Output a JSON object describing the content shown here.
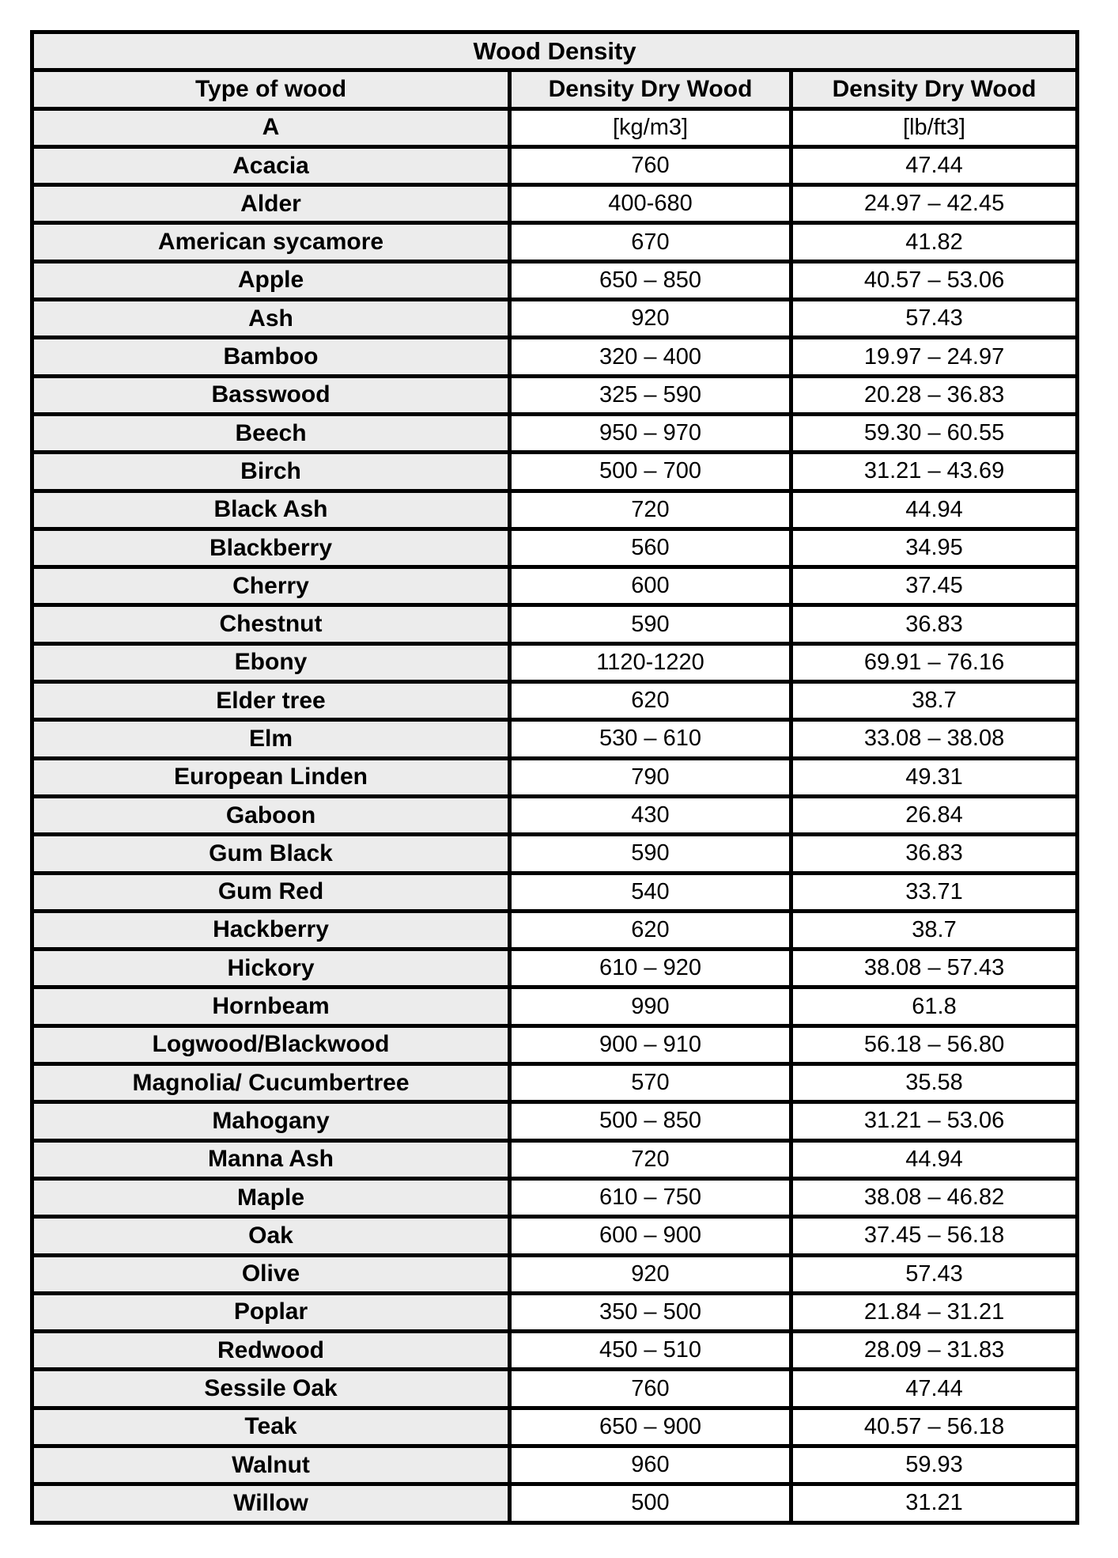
{
  "table": {
    "title": "Wood Density",
    "columns": [
      "Type of wood",
      "Density Dry Wood",
      "Density Dry Wood"
    ],
    "units_row": {
      "label": "A",
      "kg_unit": "[kg/m3]",
      "lb_unit": "[lb/ft3]"
    },
    "colors": {
      "shaded_bg": "#ececec",
      "value_bg": "#ffffff",
      "border": "#000000"
    },
    "rows": [
      {
        "name": "Acacia",
        "kg_m3": "760",
        "lb_ft3": "47.44"
      },
      {
        "name": "Alder",
        "kg_m3": "400-680",
        "lb_ft3": "24.97 – 42.45"
      },
      {
        "name": "American sycamore",
        "kg_m3": "670",
        "lb_ft3": "41.82"
      },
      {
        "name": "Apple",
        "kg_m3": "650 – 850",
        "lb_ft3": "40.57 – 53.06"
      },
      {
        "name": "Ash",
        "kg_m3": "920",
        "lb_ft3": "57.43"
      },
      {
        "name": "Bamboo",
        "kg_m3": "320 – 400",
        "lb_ft3": "19.97 – 24.97"
      },
      {
        "name": "Basswood",
        "kg_m3": "325 – 590",
        "lb_ft3": "20.28 – 36.83"
      },
      {
        "name": "Beech",
        "kg_m3": "950 – 970",
        "lb_ft3": "59.30 – 60.55"
      },
      {
        "name": "Birch",
        "kg_m3": "500 – 700",
        "lb_ft3": "31.21 – 43.69"
      },
      {
        "name": "Black Ash",
        "kg_m3": "720",
        "lb_ft3": "44.94"
      },
      {
        "name": "Blackberry",
        "kg_m3": "560",
        "lb_ft3": "34.95"
      },
      {
        "name": "Cherry",
        "kg_m3": "600",
        "lb_ft3": "37.45"
      },
      {
        "name": "Chestnut",
        "kg_m3": "590",
        "lb_ft3": "36.83"
      },
      {
        "name": "Ebony",
        "kg_m3": "1120-1220",
        "lb_ft3": "69.91 – 76.16"
      },
      {
        "name": "Elder tree",
        "kg_m3": "620",
        "lb_ft3": "38.7"
      },
      {
        "name": "Elm",
        "kg_m3": "530 – 610",
        "lb_ft3": "33.08 – 38.08"
      },
      {
        "name": "European Linden",
        "kg_m3": "790",
        "lb_ft3": "49.31"
      },
      {
        "name": "Gaboon",
        "kg_m3": "430",
        "lb_ft3": "26.84"
      },
      {
        "name": "Gum Black",
        "kg_m3": "590",
        "lb_ft3": "36.83"
      },
      {
        "name": "Gum Red",
        "kg_m3": "540",
        "lb_ft3": "33.71"
      },
      {
        "name": "Hackberry",
        "kg_m3": "620",
        "lb_ft3": "38.7"
      },
      {
        "name": "Hickory",
        "kg_m3": "610 – 920",
        "lb_ft3": "38.08 – 57.43"
      },
      {
        "name": "Hornbeam",
        "kg_m3": "990",
        "lb_ft3": "61.8"
      },
      {
        "name": "Logwood/Blackwood",
        "kg_m3": "900 – 910",
        "lb_ft3": "56.18 – 56.80"
      },
      {
        "name": "Magnolia/ Cucumbertree",
        "kg_m3": "570",
        "lb_ft3": "35.58"
      },
      {
        "name": "Mahogany",
        "kg_m3": "500 – 850",
        "lb_ft3": "31.21 – 53.06"
      },
      {
        "name": "Manna Ash",
        "kg_m3": "720",
        "lb_ft3": "44.94"
      },
      {
        "name": "Maple",
        "kg_m3": "610 – 750",
        "lb_ft3": "38.08 – 46.82"
      },
      {
        "name": "Oak",
        "kg_m3": "600 – 900",
        "lb_ft3": "37.45 – 56.18"
      },
      {
        "name": "Olive",
        "kg_m3": "920",
        "lb_ft3": "57.43"
      },
      {
        "name": "Poplar",
        "kg_m3": "350 – 500",
        "lb_ft3": "21.84 – 31.21"
      },
      {
        "name": "Redwood",
        "kg_m3": "450 – 510",
        "lb_ft3": "28.09 – 31.83"
      },
      {
        "name": "Sessile Oak",
        "kg_m3": "760",
        "lb_ft3": "47.44"
      },
      {
        "name": "Teak",
        "kg_m3": "650 – 900",
        "lb_ft3": "40.57 – 56.18"
      },
      {
        "name": "Walnut",
        "kg_m3": "960",
        "lb_ft3": "59.93"
      },
      {
        "name": "Willow",
        "kg_m3": "500",
        "lb_ft3": "31.21"
      }
    ]
  }
}
